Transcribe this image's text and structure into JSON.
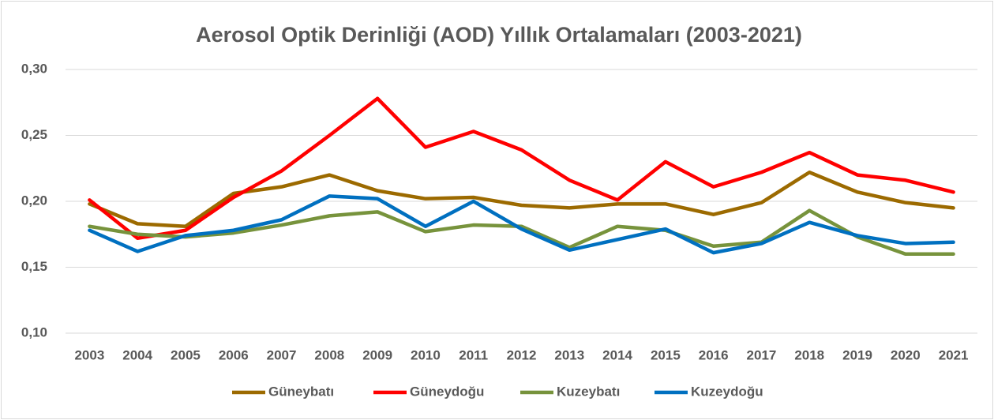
{
  "chart_data": {
    "type": "line",
    "title": "Aerosol Optik Derinliği (AOD) Yıllık Ortalamaları (2003-2021)",
    "categories": [
      "2003",
      "2004",
      "2005",
      "2006",
      "2007",
      "2008",
      "2009",
      "2010",
      "2011",
      "2012",
      "2013",
      "2014",
      "2015",
      "2016",
      "2017",
      "2018",
      "2019",
      "2020",
      "2021"
    ],
    "series": [
      {
        "name": "Güneybatı",
        "color": "#9c6a00",
        "values": [
          0.198,
          0.183,
          0.181,
          0.206,
          0.211,
          0.22,
          0.208,
          0.202,
          0.203,
          0.197,
          0.195,
          0.198,
          0.198,
          0.19,
          0.199,
          0.222,
          0.207,
          0.199,
          0.195
        ]
      },
      {
        "name": "Güneydoğu",
        "color": "#ff0000",
        "values": [
          0.201,
          0.172,
          0.178,
          0.203,
          0.223,
          0.25,
          0.278,
          0.241,
          0.253,
          0.239,
          0.216,
          0.201,
          0.23,
          0.211,
          0.222,
          0.237,
          0.22,
          0.216,
          0.207
        ]
      },
      {
        "name": "Kuzeybatı",
        "color": "#77933c",
        "values": [
          0.181,
          0.175,
          0.173,
          0.176,
          0.182,
          0.189,
          0.192,
          0.177,
          0.182,
          0.181,
          0.165,
          0.181,
          0.178,
          0.166,
          0.169,
          0.193,
          0.173,
          0.16,
          0.16
        ]
      },
      {
        "name": "Kuzeydoğu",
        "color": "#0070c0",
        "values": [
          0.178,
          0.162,
          0.174,
          0.178,
          0.186,
          0.204,
          0.202,
          0.181,
          0.2,
          0.179,
          0.163,
          0.171,
          0.179,
          0.161,
          0.168,
          0.184,
          0.174,
          0.168,
          0.169
        ]
      }
    ],
    "ylim": [
      0.1,
      0.3
    ],
    "yticks": [
      {
        "value": 0.1,
        "label": "0,10"
      },
      {
        "value": 0.15,
        "label": "0,15"
      },
      {
        "value": 0.2,
        "label": "0,20"
      },
      {
        "value": 0.25,
        "label": "0,25"
      },
      {
        "value": 0.3,
        "label": "0,30"
      }
    ],
    "grid": true,
    "legend": "bottom"
  }
}
